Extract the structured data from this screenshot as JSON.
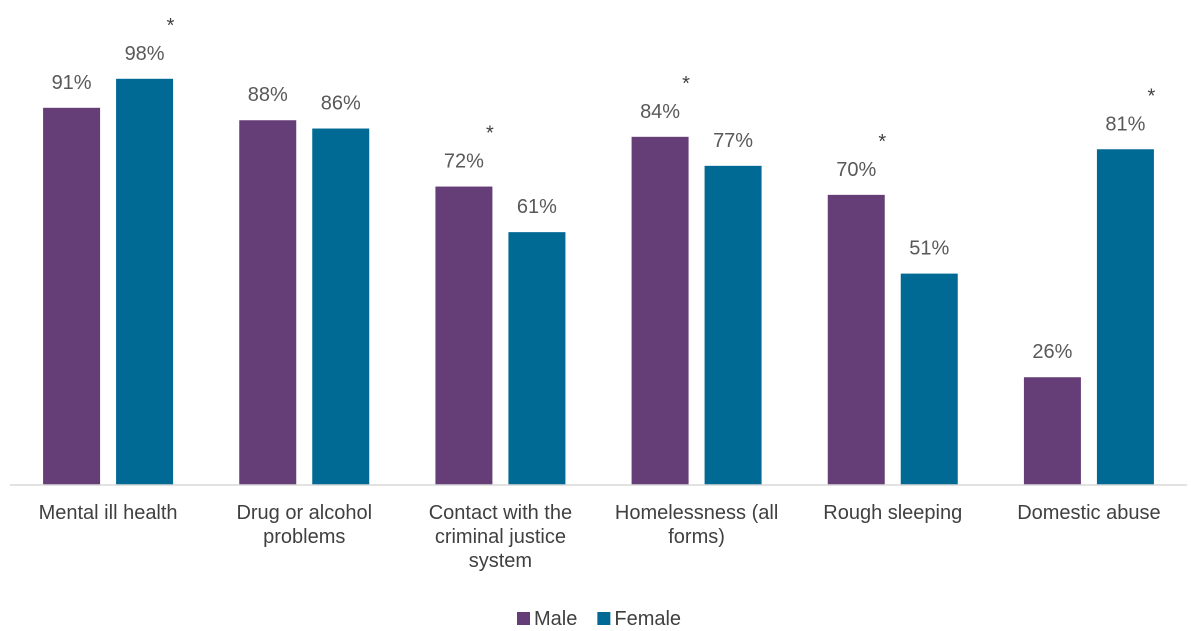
{
  "chart_data": {
    "type": "bar",
    "title": "",
    "xlabel": "",
    "ylabel": "",
    "ylim": [
      0,
      100
    ],
    "grid": false,
    "legend_position": "bottom",
    "categories": [
      "Mental ill health",
      "Drug or alcohol problems",
      "Contact with the criminal justice system",
      "Homelessness (all forms)",
      "Rough sleeping",
      "Domestic abuse"
    ],
    "category_lines": [
      [
        "Mental ill health"
      ],
      [
        "Drug or alcohol",
        "problems"
      ],
      [
        "Contact with the",
        "criminal justice",
        "system"
      ],
      [
        "Homelessness (all",
        "forms)"
      ],
      [
        "Rough sleeping"
      ],
      [
        "Domestic abuse"
      ]
    ],
    "series": [
      {
        "name": "Male",
        "color": "#653d77",
        "values": [
          91,
          88,
          72,
          84,
          70,
          26
        ],
        "labels": [
          "91%",
          "88%",
          "72%",
          "84%",
          "70%",
          "26%"
        ]
      },
      {
        "name": "Female",
        "color": "#006994",
        "values": [
          98,
          86,
          61,
          77,
          51,
          81
        ],
        "labels": [
          "98%",
          "86%",
          "61%",
          "77%",
          "51%",
          "81%"
        ]
      }
    ],
    "significance_marker": "*",
    "significance_markers": [
      {
        "category": 0,
        "series": 1
      },
      {
        "category": 2,
        "series": 0
      },
      {
        "category": 3,
        "series": 0
      },
      {
        "category": 4,
        "series": 0
      },
      {
        "category": 5,
        "series": 1
      }
    ],
    "axis_color": "#d9d9d9"
  }
}
